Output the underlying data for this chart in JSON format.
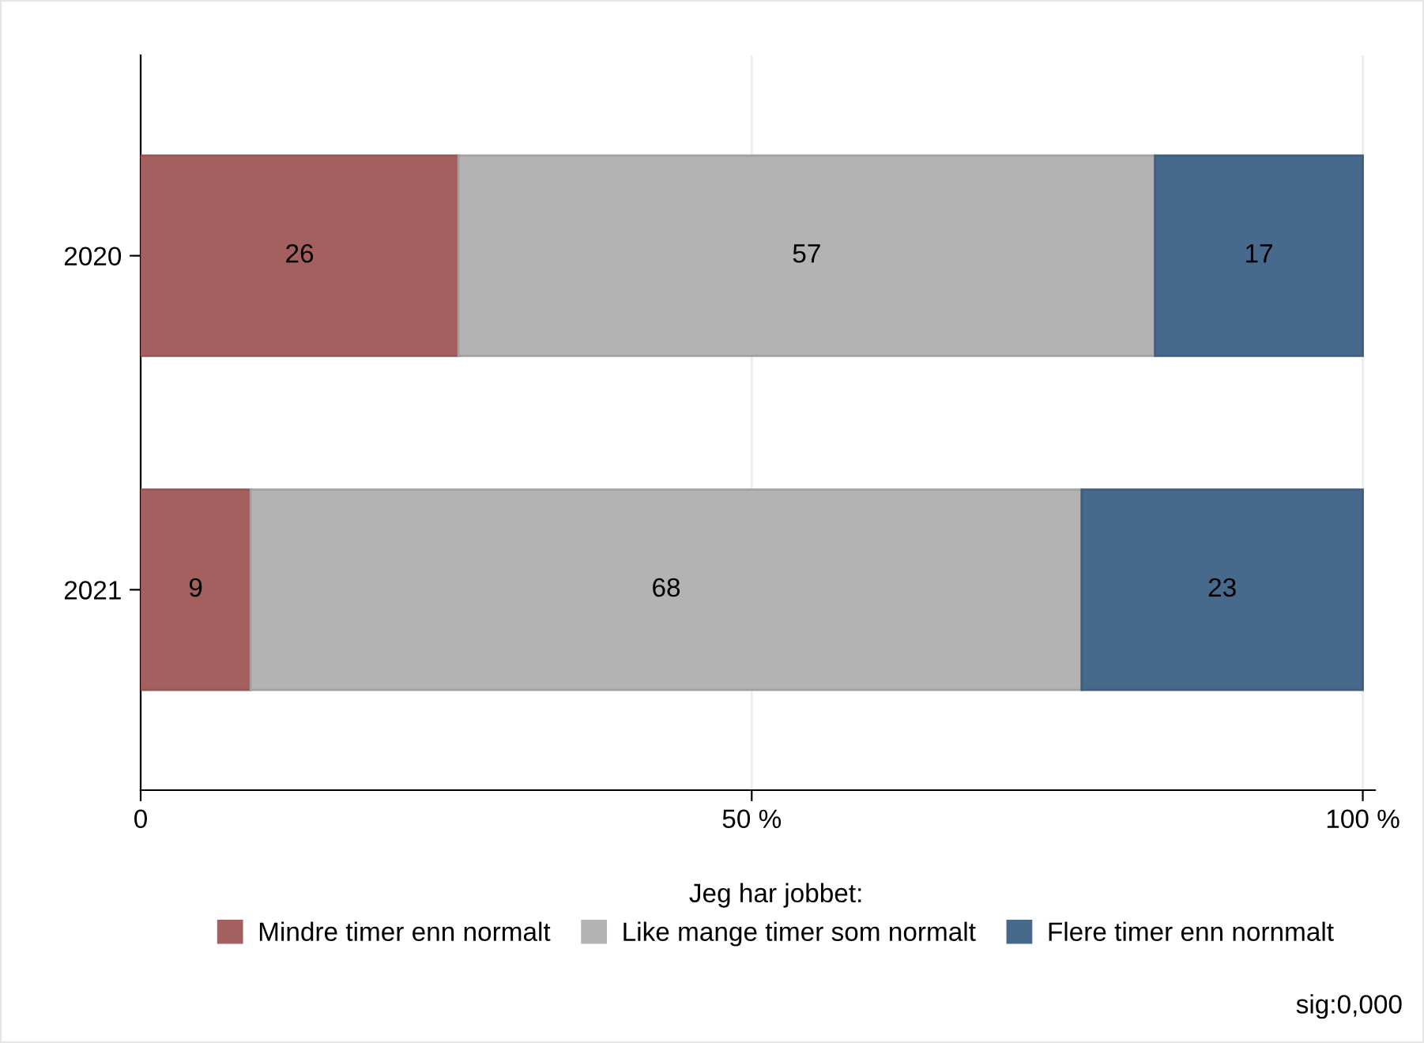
{
  "chart_data": {
    "type": "bar",
    "orientation": "horizontal",
    "stacked": true,
    "categories": [
      "2020",
      "2021"
    ],
    "series": [
      {
        "name": "Mindre timer enn normalt",
        "color": "#a45f5f",
        "values": [
          26,
          9
        ]
      },
      {
        "name": "Like mange timer som normalt",
        "color": "#b3b3b3",
        "values": [
          57,
          68
        ]
      },
      {
        "name": "Flere timer enn nornmalt",
        "color": "#46698c",
        "values": [
          17,
          23
        ]
      }
    ],
    "xlim": [
      0,
      101
    ],
    "xticks": [
      0,
      {
        "value": 50,
        "label": "50 %"
      },
      {
        "value": 100,
        "label": "100 %"
      }
    ],
    "grid": "x",
    "legend": "bottom",
    "legend_title": "Jeg har jobbet:",
    "data_labels": true,
    "annotations": [
      "sig:0,000"
    ]
  }
}
